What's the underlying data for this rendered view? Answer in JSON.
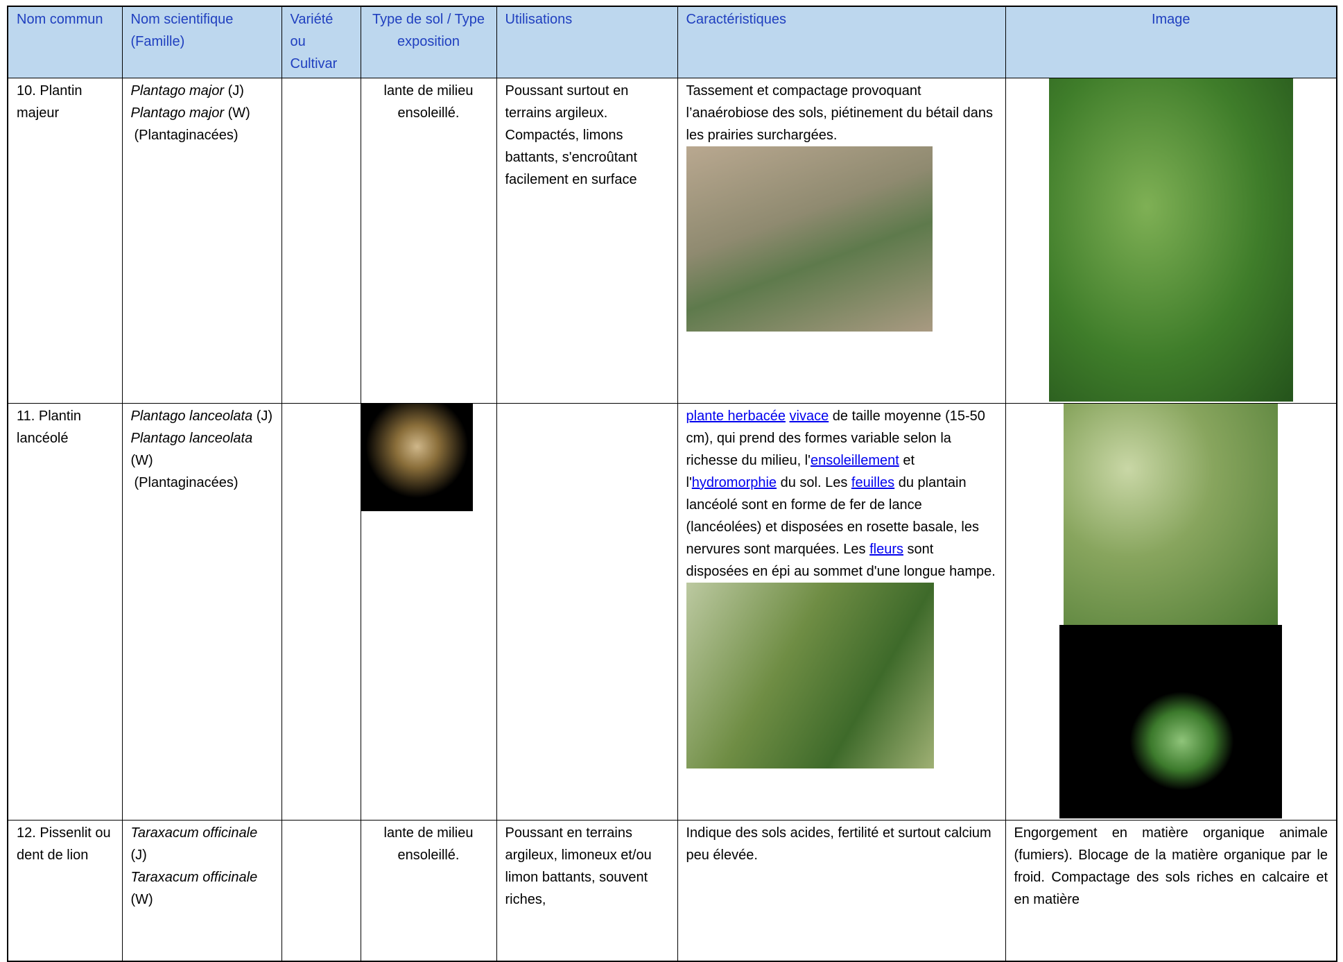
{
  "header": {
    "columns": [
      "Nom commun",
      "Nom scientifique (Famille)",
      "Variété ou Cultivar",
      "Type de sol / Type exposition",
      "Utilisations",
      "Caractéristiques",
      "Image"
    ]
  },
  "rows": [
    {
      "common": "10. Plantin majeur",
      "scientific": [
        {
          "italic": "Plantago major",
          "plain": "(J)"
        },
        {
          "italic": "Plantago major",
          "plain": "(W)"
        },
        {
          "plain": "(Plantaginacées)"
        }
      ],
      "soil": "lante de milieu ensoleillé.",
      "uses": "Poussant surtout en terrains argileux. Compactés, limons battants, s'encroûtant facilement en surface",
      "characteristics": [
        {
          "text": "Tassement et compactage provoquant l’anaérobiose des sols, piétinement du bétail dans les prairies surchargées."
        }
      ]
    },
    {
      "common": "11. Plantin lancéolé",
      "scientific": [
        {
          "italic": "Plantago lanceolata",
          "plain": "(J)"
        },
        {
          "italic": "Plantago lanceolata",
          "plain": "(W)"
        },
        {
          "plain": "(Plantaginacées)"
        }
      ],
      "characteristics": [
        {
          "text": "plante herbacée",
          "link": true
        },
        {
          "text": "vivace",
          "link": true
        },
        {
          "text": " de taille moyenne (15-50 cm), qui prend des formes variable selon la richesse du milieu, l'"
        },
        {
          "text": "ensoleillement",
          "link": true
        },
        {
          "text": " et l'"
        },
        {
          "text": "hydromorphie",
          "link": true
        },
        {
          "text": " du sol. Les "
        },
        {
          "text": "feuilles",
          "link": true
        },
        {
          "text": " du plantain lancéolé sont en forme de fer de lance (lancéolées) et disposées en rosette basale, les nervures sont marquées. Les "
        },
        {
          "text": "fleurs",
          "link": true
        },
        {
          "text": " sont disposées en épi au sommet d'une longue hampe."
        }
      ]
    },
    {
      "common": "12. Pissenlit ou dent de lion",
      "scientific": [
        {
          "italic": "Taraxacum officinale",
          "plain": "(J)"
        },
        {
          "italic": "Taraxacum officinale",
          "plain": "(W)"
        }
      ],
      "soil": "lante de milieu ensoleillé.",
      "uses": "Poussant en terrains argileux, limoneux et/ou limon battants, souvent riches,",
      "characteristics": [
        {
          "text": "Indique des sols acides, fertilité et surtout calcium peu élevée."
        }
      ],
      "image_text": "Engorgement en matière organique animale (fumiers). Blocage de la matière organique par le froid. Compactage des sols riches en calcaire et en matière"
    }
  ]
}
